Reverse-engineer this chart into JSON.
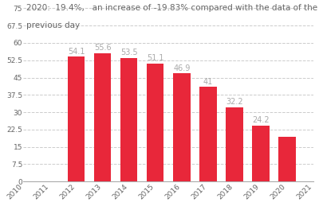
{
  "years": [
    2010,
    2011,
    2012,
    2013,
    2014,
    2015,
    2016,
    2017,
    2018,
    2019,
    2020,
    2021
  ],
  "values": [
    null,
    null,
    54.1,
    55.6,
    53.5,
    51.1,
    46.9,
    41,
    32.2,
    24.2,
    19.4,
    null
  ],
  "bar_color": "#e8273a",
  "title_line1": "2020:  19.4%,   an increase of -19.83% compared with the data of the",
  "title_line2": "previous day",
  "title_color": "#666666",
  "title_fontsize": 7.5,
  "annotation_color": "#aaaaaa",
  "annotation_fontsize": 7,
  "ylim": [
    0,
    75
  ],
  "yticks": [
    0,
    7.5,
    15,
    22.5,
    30,
    37.5,
    45,
    52.5,
    60,
    67.5,
    75
  ],
  "ytick_labels": [
    "0",
    "7.5",
    "15",
    "22.5",
    "30",
    "37.5",
    "45",
    "52.5",
    "60",
    "67.5",
    "75"
  ],
  "grid_color": "#cccccc",
  "grid_style": "--",
  "background_color": "#ffffff",
  "bar_width": 0.65
}
